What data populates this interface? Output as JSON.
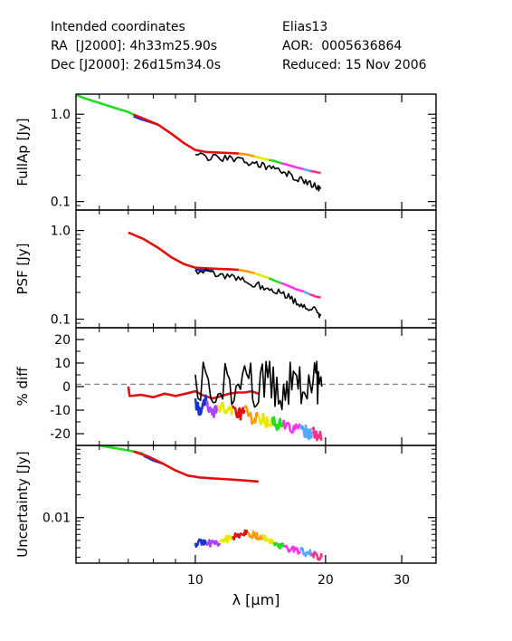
{
  "header": {
    "left": {
      "line1": "Intended coordinates",
      "line2": "RA  [J2000]: 4h33m25.90s",
      "line3": "Dec [J2000]: 26d15m34.0s"
    },
    "right": {
      "line1": "Elias13",
      "line2": "AOR:  0005636864",
      "line3": "Reduced: 15 Nov 2006"
    }
  },
  "colors": {
    "green": "#22dd22",
    "blue": "#1a33cc",
    "red": "#e01010",
    "black": "#000000",
    "orange": "#ff9900",
    "yellow": "#e8e800",
    "magenta": "#ff33ee",
    "cyan": "#55aaff",
    "purple": "#aa44ff",
    "pink": "#ff3388",
    "gray": "#888888"
  },
  "chart_data": [
    {
      "type": "line",
      "ylabel": "FullAp [Jy]",
      "yscale": "log",
      "ylim": [
        0.08,
        1.7
      ],
      "yticks": [
        "1.0",
        "0.1"
      ],
      "xscale": "log",
      "xlim": [
        5.3,
        36
      ],
      "series": [
        {
          "color": "green",
          "points": [
            [
              5.3,
              1.68
            ],
            [
              5.5,
              1.55
            ],
            [
              5.8,
              1.42
            ],
            [
              6.2,
              1.28
            ],
            [
              6.6,
              1.16
            ],
            [
              7.0,
              1.06
            ],
            [
              7.2,
              0.99
            ]
          ]
        },
        {
          "color": "blue",
          "points": [
            [
              7.2,
              0.95
            ],
            [
              7.5,
              0.88
            ],
            [
              7.9,
              0.81
            ],
            [
              8.2,
              0.76
            ]
          ]
        },
        {
          "color": "red",
          "points": [
            [
              7.2,
              0.99
            ],
            [
              7.6,
              0.89
            ],
            [
              8.2,
              0.76
            ],
            [
              8.8,
              0.6
            ],
            [
              9.4,
              0.47
            ],
            [
              10.0,
              0.39
            ],
            [
              10.6,
              0.37
            ],
            [
              11.2,
              0.365
            ],
            [
              12.0,
              0.36
            ],
            [
              12.6,
              0.355
            ]
          ]
        },
        {
          "color": "orange",
          "points": [
            [
              12.6,
              0.355
            ],
            [
              13.2,
              0.345
            ],
            [
              13.7,
              0.33
            ]
          ]
        },
        {
          "color": "yellow",
          "points": [
            [
              13.7,
              0.33
            ],
            [
              14.2,
              0.315
            ],
            [
              14.8,
              0.3
            ]
          ]
        },
        {
          "color": "green",
          "points": [
            [
              14.8,
              0.3
            ],
            [
              15.3,
              0.29
            ],
            [
              15.8,
              0.275
            ]
          ]
        },
        {
          "color": "magenta",
          "points": [
            [
              15.8,
              0.275
            ],
            [
              16.5,
              0.26
            ],
            [
              17.2,
              0.245
            ],
            [
              17.8,
              0.235
            ]
          ]
        },
        {
          "color": "cyan",
          "points": [
            [
              17.8,
              0.235
            ],
            [
              18.4,
              0.225
            ]
          ]
        },
        {
          "color": "pink",
          "points": [
            [
              18.4,
              0.225
            ],
            [
              19.0,
              0.218
            ],
            [
              19.5,
              0.212
            ]
          ]
        },
        {
          "color": "black",
          "noisy": true,
          "points": [
            [
              10.0,
              0.33
            ],
            [
              11.0,
              0.32
            ],
            [
              12.0,
              0.31
            ],
            [
              13.0,
              0.29
            ],
            [
              14.0,
              0.27
            ],
            [
              15.0,
              0.24
            ],
            [
              16.0,
              0.22
            ],
            [
              17.0,
              0.19
            ],
            [
              18.0,
              0.165
            ],
            [
              19.0,
              0.15
            ],
            [
              19.5,
              0.14
            ]
          ]
        }
      ]
    },
    {
      "type": "line",
      "ylabel": "PSF [Jy]",
      "yscale": "log",
      "ylim": [
        0.08,
        1.7
      ],
      "yticks": [
        "1.0",
        "0.1"
      ],
      "xscale": "log",
      "xlim": [
        5.3,
        36
      ],
      "series": [
        {
          "color": "red",
          "points": [
            [
              7.0,
              0.95
            ],
            [
              7.6,
              0.8
            ],
            [
              8.2,
              0.64
            ],
            [
              8.8,
              0.5
            ],
            [
              9.4,
              0.42
            ],
            [
              10.0,
              0.38
            ],
            [
              10.6,
              0.375
            ],
            [
              11.2,
              0.37
            ],
            [
              12.0,
              0.365
            ],
            [
              12.6,
              0.36
            ]
          ]
        },
        {
          "color": "blue",
          "points": [
            [
              10.0,
              0.36
            ],
            [
              10.6,
              0.355
            ],
            [
              11.0,
              0.35
            ]
          ]
        },
        {
          "color": "orange",
          "points": [
            [
              12.6,
              0.36
            ],
            [
              13.2,
              0.345
            ],
            [
              13.7,
              0.33
            ]
          ]
        },
        {
          "color": "yellow",
          "points": [
            [
              13.7,
              0.33
            ],
            [
              14.2,
              0.31
            ],
            [
              14.8,
              0.29
            ]
          ]
        },
        {
          "color": "green",
          "points": [
            [
              14.8,
              0.29
            ],
            [
              15.3,
              0.27
            ],
            [
              15.8,
              0.255
            ]
          ]
        },
        {
          "color": "magenta",
          "points": [
            [
              15.8,
              0.255
            ],
            [
              16.5,
              0.235
            ],
            [
              17.2,
              0.215
            ],
            [
              17.8,
              0.205
            ]
          ]
        },
        {
          "color": "cyan",
          "points": [
            [
              17.8,
              0.205
            ],
            [
              18.4,
              0.19
            ]
          ]
        },
        {
          "color": "pink",
          "points": [
            [
              18.4,
              0.19
            ],
            [
              19.0,
              0.18
            ],
            [
              19.5,
              0.175
            ]
          ]
        },
        {
          "color": "black",
          "noisy": true,
          "points": [
            [
              10.0,
              0.345
            ],
            [
              11.0,
              0.33
            ],
            [
              12.0,
              0.3
            ],
            [
              13.0,
              0.27
            ],
            [
              14.0,
              0.24
            ],
            [
              15.0,
              0.21
            ],
            [
              16.0,
              0.19
            ],
            [
              17.0,
              0.16
            ],
            [
              18.0,
              0.14
            ],
            [
              19.0,
              0.125
            ],
            [
              19.5,
              0.11
            ]
          ]
        }
      ]
    },
    {
      "type": "line",
      "ylabel": "% diff",
      "yscale": "linear",
      "ylim": [
        -25,
        25
      ],
      "yticks": [
        "20",
        "10",
        "0",
        "-10",
        "-20"
      ],
      "xscale": "log",
      "xlim": [
        5.3,
        36
      ],
      "reference_line": {
        "y": 1,
        "style": "dashed",
        "color": "gray"
      },
      "series": [
        {
          "color": "red",
          "points": [
            [
              7.0,
              0
            ],
            [
              7.05,
              -4
            ],
            [
              7.5,
              -3.5
            ],
            [
              8.0,
              -4.5
            ],
            [
              8.5,
              -3
            ],
            [
              9.0,
              -4
            ],
            [
              9.5,
              -3
            ],
            [
              10.0,
              -2
            ],
            [
              10.5,
              -4
            ],
            [
              11.0,
              -5
            ],
            [
              11.5,
              -4
            ],
            [
              12.0,
              -3
            ],
            [
              12.5,
              -2.5
            ],
            [
              13.0,
              -2.5
            ],
            [
              13.5,
              -2
            ],
            [
              14.0,
              -3
            ]
          ]
        },
        {
          "color": "blue",
          "noisy": true,
          "points": [
            [
              10.0,
              -6
            ],
            [
              10.2,
              -10
            ],
            [
              10.4,
              -8
            ],
            [
              10.6,
              -6
            ]
          ]
        },
        {
          "color": "purple",
          "noisy": true,
          "points": [
            [
              10.6,
              -8
            ],
            [
              11.0,
              -11
            ],
            [
              11.3,
              -9
            ]
          ]
        },
        {
          "color": "yellow",
          "noisy": true,
          "points": [
            [
              11.3,
              -9
            ],
            [
              11.8,
              -10
            ],
            [
              12.2,
              -9
            ]
          ]
        },
        {
          "color": "red",
          "noisy": true,
          "points": [
            [
              12.2,
              -9
            ],
            [
              12.6,
              -12
            ],
            [
              13.0,
              -10
            ]
          ]
        },
        {
          "color": "orange",
          "noisy": true,
          "points": [
            [
              13.0,
              -10
            ],
            [
              13.6,
              -15
            ],
            [
              14.0,
              -13
            ]
          ]
        },
        {
          "color": "yellow",
          "noisy": true,
          "points": [
            [
              14.0,
              -13
            ],
            [
              14.6,
              -15
            ],
            [
              15.0,
              -14
            ]
          ]
        },
        {
          "color": "green",
          "noisy": true,
          "points": [
            [
              15.0,
              -14
            ],
            [
              15.5,
              -17
            ],
            [
              16.0,
              -15
            ]
          ]
        },
        {
          "color": "magenta",
          "noisy": true,
          "points": [
            [
              16.0,
              -15
            ],
            [
              16.8,
              -18
            ],
            [
              17.5,
              -17
            ]
          ]
        },
        {
          "color": "cyan",
          "noisy": true,
          "points": [
            [
              17.5,
              -17
            ],
            [
              18.2,
              -20
            ],
            [
              18.6,
              -19
            ]
          ]
        },
        {
          "color": "pink",
          "noisy": true,
          "points": [
            [
              18.6,
              -19
            ],
            [
              19.2,
              -21
            ],
            [
              19.6,
              -22
            ]
          ]
        },
        {
          "color": "black",
          "noisy": true,
          "points": [
            [
              10.0,
              2
            ],
            [
              11.0,
              3
            ],
            [
              12.0,
              1
            ],
            [
              13.0,
              4
            ],
            [
              14.0,
              0
            ],
            [
              15.0,
              2
            ],
            [
              16.0,
              -1
            ],
            [
              17.0,
              3
            ],
            [
              18.0,
              -2
            ],
            [
              19.0,
              1
            ],
            [
              19.6,
              0
            ]
          ]
        }
      ]
    },
    {
      "type": "line",
      "ylabel": "Uncertainty [Jy]",
      "yscale": "log",
      "ylim": [
        0.0025,
        0.09
      ],
      "yticks": [
        "0.01"
      ],
      "xscale": "log",
      "xlim": [
        5.3,
        36
      ],
      "series": [
        {
          "color": "green",
          "points": [
            [
              6.0,
              0.09
            ],
            [
              6.6,
              0.082
            ],
            [
              7.2,
              0.075
            ],
            [
              7.6,
              0.07
            ]
          ]
        },
        {
          "color": "blue",
          "points": [
            [
              7.6,
              0.066
            ],
            [
              8.0,
              0.057
            ],
            [
              8.4,
              0.052
            ]
          ]
        },
        {
          "color": "red",
          "points": [
            [
              7.2,
              0.075
            ],
            [
              7.8,
              0.064
            ],
            [
              8.4,
              0.052
            ],
            [
              9.0,
              0.042
            ],
            [
              9.6,
              0.036
            ],
            [
              10.2,
              0.034
            ],
            [
              11.0,
              0.033
            ],
            [
              12.0,
              0.032
            ],
            [
              13.0,
              0.031
            ],
            [
              14.0,
              0.03
            ]
          ]
        },
        {
          "color": "blue",
          "noisy": true,
          "points": [
            [
              10.0,
              0.0045
            ],
            [
              10.3,
              0.0048
            ],
            [
              10.6,
              0.0044
            ]
          ]
        },
        {
          "color": "purple",
          "noisy": true,
          "points": [
            [
              10.6,
              0.0044
            ],
            [
              11.0,
              0.0048
            ],
            [
              11.4,
              0.0046
            ]
          ]
        },
        {
          "color": "yellow",
          "noisy": true,
          "points": [
            [
              11.4,
              0.0046
            ],
            [
              11.8,
              0.0052
            ],
            [
              12.2,
              0.0055
            ]
          ]
        },
        {
          "color": "red",
          "noisy": true,
          "points": [
            [
              12.2,
              0.0055
            ],
            [
              12.8,
              0.006
            ],
            [
              13.2,
              0.0062
            ]
          ]
        },
        {
          "color": "orange",
          "noisy": true,
          "points": [
            [
              13.2,
              0.0062
            ],
            [
              13.8,
              0.0058
            ],
            [
              14.3,
              0.0055
            ]
          ]
        },
        {
          "color": "yellow",
          "noisy": true,
          "points": [
            [
              14.3,
              0.0055
            ],
            [
              14.8,
              0.0048
            ],
            [
              15.2,
              0.0046
            ]
          ]
        },
        {
          "color": "green",
          "noisy": true,
          "points": [
            [
              15.2,
              0.0046
            ],
            [
              15.6,
              0.0042
            ],
            [
              16.0,
              0.0041
            ]
          ]
        },
        {
          "color": "magenta",
          "noisy": true,
          "points": [
            [
              16.0,
              0.0041
            ],
            [
              16.8,
              0.0038
            ],
            [
              17.5,
              0.0036
            ]
          ]
        },
        {
          "color": "cyan",
          "noisy": true,
          "points": [
            [
              17.5,
              0.0036
            ],
            [
              18.2,
              0.0034
            ],
            [
              18.6,
              0.0033
            ]
          ]
        },
        {
          "color": "pink",
          "noisy": true,
          "points": [
            [
              18.6,
              0.0033
            ],
            [
              19.2,
              0.0031
            ],
            [
              19.6,
              0.003
            ]
          ]
        }
      ]
    }
  ],
  "x_axis": {
    "ticks": [
      "10",
      "20",
      "30"
    ],
    "tick_values": [
      10,
      20,
      30
    ],
    "label": "λ [μm]"
  }
}
